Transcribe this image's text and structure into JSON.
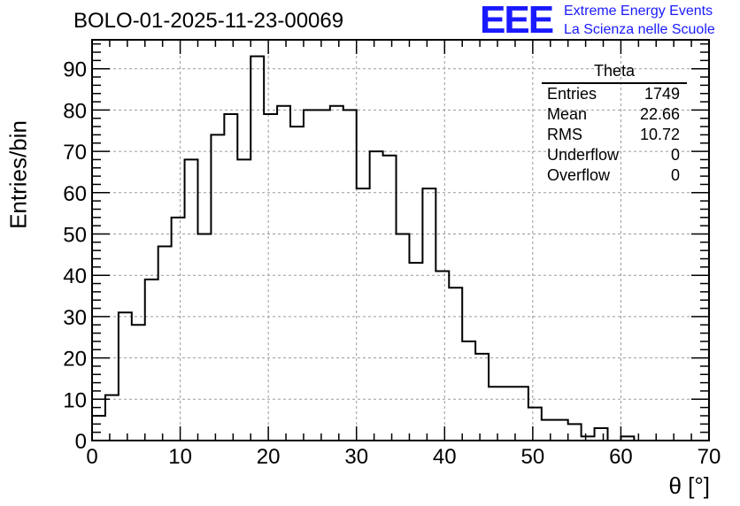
{
  "title": "BOLO-01-2025-11-23-00069",
  "logo": {
    "mark": "EEE",
    "line1": "Extreme Energy Events",
    "line2": "La Scienza nelle Scuole",
    "color": "#1a1aff"
  },
  "stats": {
    "header": "Theta",
    "rows": [
      {
        "label": "Entries",
        "value": "1749"
      },
      {
        "label": "Mean",
        "value": "22.66"
      },
      {
        "label": "RMS",
        "value": "10.72"
      },
      {
        "label": "Underflow",
        "value": "0"
      },
      {
        "label": "Overflow",
        "value": "0"
      }
    ]
  },
  "chart_data": {
    "type": "histogram",
    "title": "BOLO-01-2025-11-23-00069",
    "xlabel": "θ [°]",
    "ylabel": "Entries/bin",
    "xlim": [
      0,
      70
    ],
    "ylim": [
      0,
      97
    ],
    "bin_width": 1.5,
    "x_ticks": [
      0,
      10,
      20,
      30,
      40,
      50,
      60,
      70
    ],
    "y_ticks": [
      0,
      10,
      20,
      30,
      40,
      50,
      60,
      70,
      80,
      90
    ],
    "grid": true,
    "values": [
      6,
      11,
      31,
      28,
      39,
      47,
      54,
      68,
      50,
      74,
      79,
      68,
      93,
      79,
      81,
      76,
      80,
      80,
      81,
      80,
      61,
      70,
      69,
      50,
      43,
      61,
      41,
      37,
      24,
      21,
      13,
      13,
      13,
      8,
      5,
      5,
      4,
      1,
      3,
      0,
      1,
      0,
      0,
      0,
      0,
      0,
      0
    ]
  }
}
